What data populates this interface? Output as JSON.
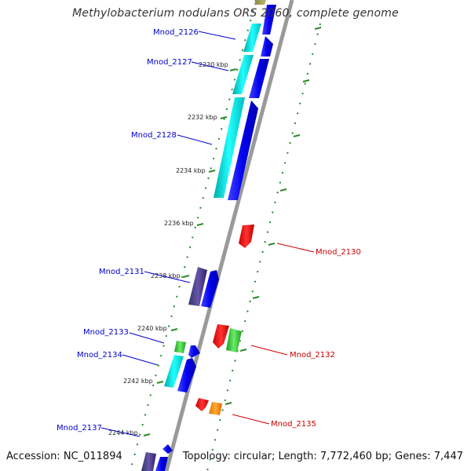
{
  "title": "Methylobacterium nodulans ORS 2060, complete genome",
  "accession": "Accession: NC_011894",
  "topology": "Topology: circular; Length: 7,772,460 bp; Genes: 7,447",
  "colors": {
    "backbone": "#888888",
    "tick": "#228822",
    "blue": "#0000ee",
    "cyan": "#00dddd",
    "purple": "#443377",
    "green": "#33bb33",
    "red": "#ee0000",
    "orange": "#ff8800",
    "label_top": "#0000cc",
    "label_bottom": "#cc0000"
  },
  "kbp_ticks": [
    "2230 kbp",
    "2232 kbp",
    "2234 kbp",
    "2236 kbp",
    "2238 kbp",
    "2240 kbp",
    "2242 kbp",
    "2244 kbp"
  ],
  "gene_labels_top": [
    "Mnod_2126",
    "Mnod_2127",
    "Mnod_2128",
    "Mnod_2131",
    "Mnod_2133",
    "Mnod_2134",
    "Mnod_2137"
  ],
  "gene_labels_bottom": [
    "Mnod_2130",
    "Mnod_2132",
    "Mnod_2135"
  ]
}
